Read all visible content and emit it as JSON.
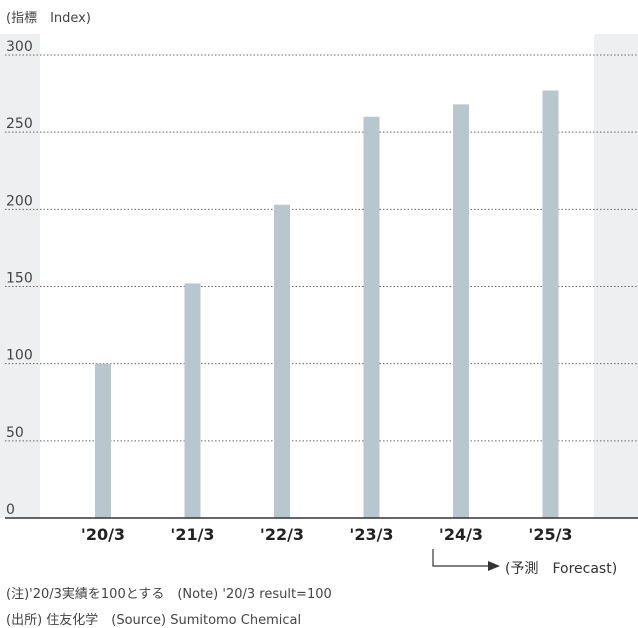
{
  "chart_data": {
    "type": "bar",
    "unit_label": "(指標　Index)",
    "categories": [
      "'20/3",
      "'21/3",
      "'22/3",
      "'23/3",
      "'24/3",
      "'25/3"
    ],
    "values": [
      100,
      152,
      203,
      260,
      268,
      277
    ],
    "ylim": [
      0,
      300
    ],
    "yticks": [
      0,
      50,
      100,
      150,
      200,
      250,
      300
    ],
    "grid": true,
    "forecast_label": "(予測　Forecast)",
    "forecast_from_category": "'24/3"
  },
  "colors": {
    "bar": "#b8c6ce",
    "shade": "#eeeff0",
    "grid": "#666666",
    "axis": "#333333"
  },
  "notes": {
    "note": "(注)'20/3実績を100とする　(Note) '20/3 result=100",
    "source": "(出所) 住友化学　(Source) Sumitomo Chemical"
  }
}
